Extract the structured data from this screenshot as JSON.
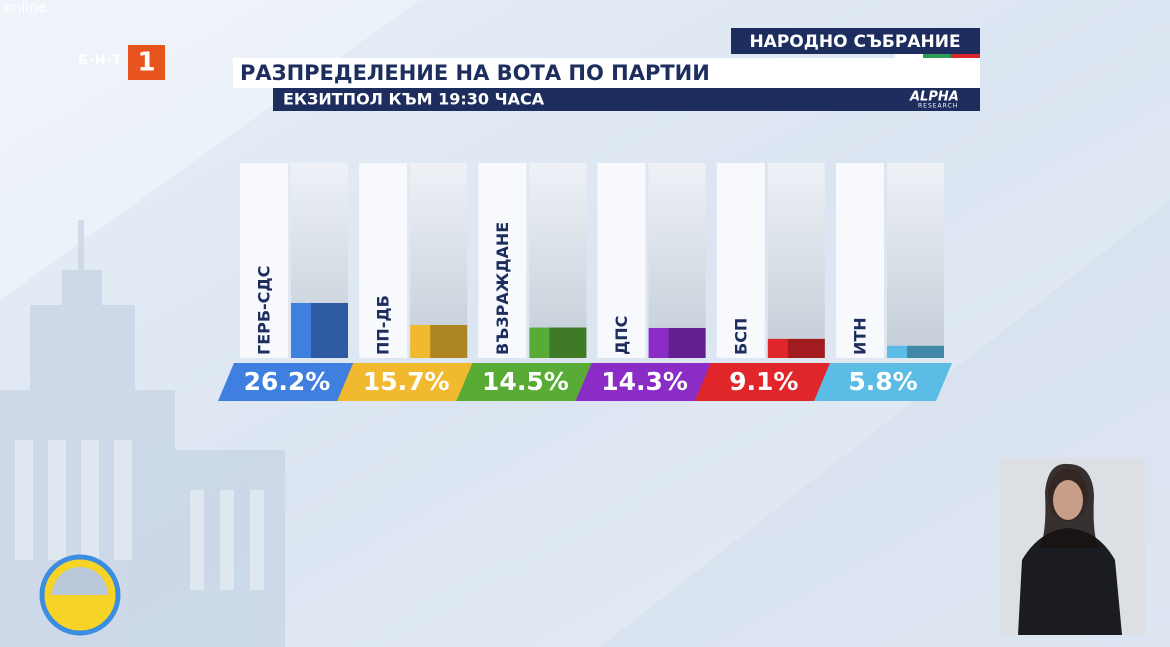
{
  "header": {
    "corner": "online",
    "network": "Б·Н·Т",
    "channel": "1",
    "section": "НАРОДНО СЪБРАНИЕ",
    "source": "ALPHA",
    "source_sub": "RESEARCH"
  },
  "chart_data": {
    "type": "bar",
    "title": "РАЗПРЕДЕЛЕНИЕ НА ВОТА ПО ПАРТИИ",
    "subtitle": "ЕКЗИТПОЛ КЪМ 19:30 ЧАСА",
    "categories": [
      "ГЕРБ-СДС",
      "ПП-ДБ",
      "ВЪЗРАЖДАНЕ",
      "ДПС",
      "БСП",
      "ИТН"
    ],
    "values": [
      26.2,
      15.7,
      14.5,
      14.3,
      9.1,
      5.8
    ],
    "value_labels": [
      "26.2%",
      "15.7%",
      "14.5%",
      "14.3%",
      "9.1%",
      "5.8%"
    ],
    "colors": [
      "#3f7fe0",
      "#f0b92e",
      "#58ab35",
      "#8b2cc6",
      "#e0262b",
      "#5bbde6"
    ]
  }
}
